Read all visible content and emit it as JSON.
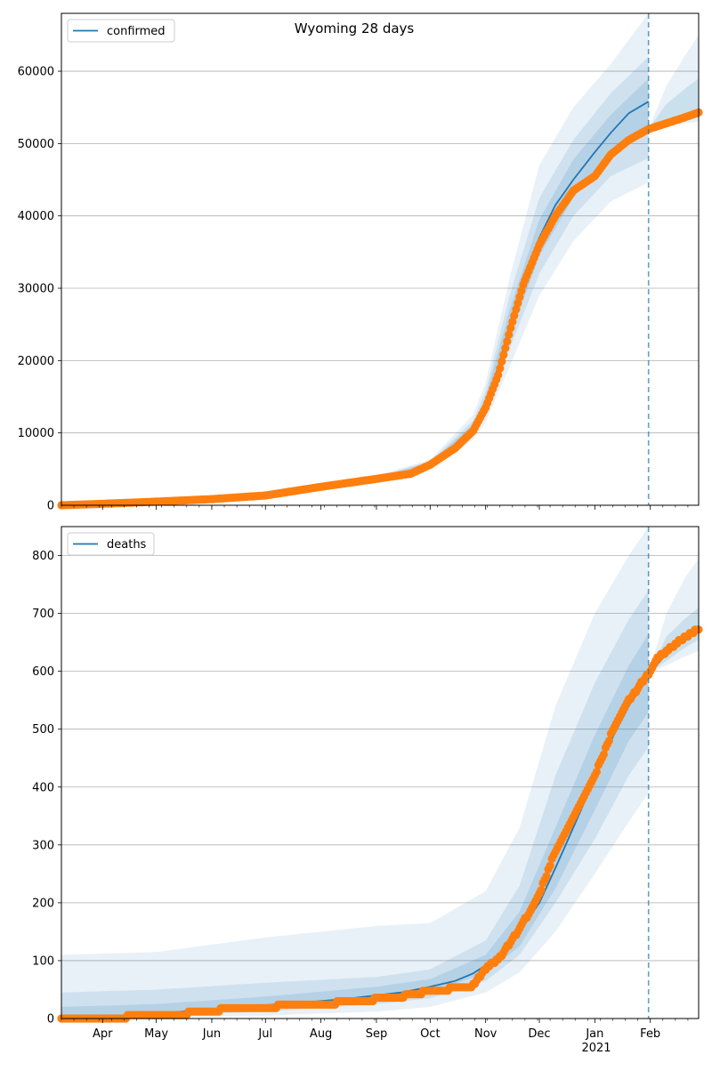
{
  "title": "Wyoming 28 days",
  "colors": {
    "model": "#1f77b4",
    "observed": "#ff7f0e",
    "band": "#1f77b4",
    "grid": "#b0b0b0"
  },
  "x_axis": {
    "start": "2020-03-09",
    "end": "2021-02-28",
    "forecast_date": "2021-01-31",
    "ticks": [
      {
        "date": "2020-04-01",
        "label": "Apr"
      },
      {
        "date": "2020-05-01",
        "label": "May"
      },
      {
        "date": "2020-06-01",
        "label": "Jun"
      },
      {
        "date": "2020-07-01",
        "label": "Jul"
      },
      {
        "date": "2020-08-01",
        "label": "Aug"
      },
      {
        "date": "2020-09-01",
        "label": "Sep"
      },
      {
        "date": "2020-10-01",
        "label": "Oct"
      },
      {
        "date": "2020-11-01",
        "label": "Nov"
      },
      {
        "date": "2020-12-01",
        "label": "Dec"
      },
      {
        "date": "2021-01-01",
        "label": "Jan"
      },
      {
        "date": "2021-02-01",
        "label": "Feb"
      }
    ],
    "year_label": "2021"
  },
  "chart_data": [
    {
      "type": "line",
      "legend": "confirmed",
      "legend_position": "top-left",
      "grid": "horizontal",
      "ylim": [
        0,
        68000
      ],
      "yticks": [
        0,
        10000,
        20000,
        30000,
        40000,
        50000,
        60000
      ],
      "series": [
        {
          "name": "confirmed",
          "kind": "model",
          "points": [
            [
              "2020-03-09",
              0
            ],
            [
              "2020-04-01",
              200
            ],
            [
              "2020-05-01",
              500
            ],
            [
              "2020-06-01",
              850
            ],
            [
              "2020-07-01",
              1400
            ],
            [
              "2020-08-01",
              2600
            ],
            [
              "2020-09-01",
              3700
            ],
            [
              "2020-09-20",
              4400
            ],
            [
              "2020-10-01",
              5700
            ],
            [
              "2020-10-15",
              8000
            ],
            [
              "2020-10-25",
              10500
            ],
            [
              "2020-11-01",
              14000
            ],
            [
              "2020-11-08",
              19000
            ],
            [
              "2020-11-15",
              25500
            ],
            [
              "2020-11-22",
              31500
            ],
            [
              "2020-12-01",
              37000
            ],
            [
              "2020-12-10",
              41500
            ],
            [
              "2020-12-20",
              45000
            ],
            [
              "2021-01-01",
              48800
            ],
            [
              "2021-01-10",
              51500
            ],
            [
              "2021-01-20",
              54200
            ],
            [
              "2021-01-31",
              55800
            ]
          ]
        },
        {
          "name": "observed",
          "kind": "observed",
          "points": [
            [
              "2020-03-09",
              0
            ],
            [
              "2020-04-01",
              200
            ],
            [
              "2020-05-01",
              500
            ],
            [
              "2020-06-01",
              850
            ],
            [
              "2020-07-01",
              1350
            ],
            [
              "2020-08-01",
              2550
            ],
            [
              "2020-09-01",
              3650
            ],
            [
              "2020-09-20",
              4350
            ],
            [
              "2020-10-01",
              5600
            ],
            [
              "2020-10-15",
              7900
            ],
            [
              "2020-10-25",
              10300
            ],
            [
              "2020-11-01",
              13500
            ],
            [
              "2020-11-08",
              18000
            ],
            [
              "2020-11-15",
              24500
            ],
            [
              "2020-11-22",
              30500
            ],
            [
              "2020-12-01",
              36000
            ],
            [
              "2020-12-10",
              40000
            ],
            [
              "2020-12-20",
              43500
            ],
            [
              "2021-01-01",
              45500
            ],
            [
              "2021-01-10",
              48500
            ],
            [
              "2021-01-20",
              50500
            ],
            [
              "2021-01-31",
              52000
            ],
            [
              "2021-02-10",
              52800
            ],
            [
              "2021-02-20",
              53600
            ],
            [
              "2021-02-28",
              54300
            ]
          ]
        }
      ],
      "bands": [
        {
          "level": "outer",
          "points": [
            [
              "2020-03-09",
              0,
              200
            ],
            [
              "2020-05-01",
              400,
              700
            ],
            [
              "2020-07-01",
              1150,
              1650
            ],
            [
              "2020-09-01",
              3300,
              4100
            ],
            [
              "2020-10-01",
              5000,
              6300
            ],
            [
              "2020-10-25",
              9000,
              12500
            ],
            [
              "2020-11-01",
              11500,
              17000
            ],
            [
              "2020-11-15",
              19500,
              32000
            ],
            [
              "2020-12-01",
              29000,
              47000
            ],
            [
              "2020-12-20",
              36500,
              55000
            ],
            [
              "2021-01-10",
              42000,
              61000
            ],
            [
              "2021-01-31",
              44600,
              68000
            ]
          ]
        },
        {
          "level": "middle",
          "points": [
            [
              "2020-03-09",
              0,
              120
            ],
            [
              "2020-05-01",
              450,
              600
            ],
            [
              "2020-07-01",
              1250,
              1550
            ],
            [
              "2020-09-01",
              3450,
              3950
            ],
            [
              "2020-10-01",
              5200,
              6100
            ],
            [
              "2020-10-25",
              9500,
              11700
            ],
            [
              "2020-11-01",
              12500,
              15800
            ],
            [
              "2020-11-15",
              22000,
              29500
            ],
            [
              "2020-12-01",
              32000,
              42500
            ],
            [
              "2020-12-20",
              40000,
              50500
            ],
            [
              "2021-01-10",
              45500,
              57000
            ],
            [
              "2021-01-31",
              48000,
              62000
            ]
          ]
        },
        {
          "level": "inner",
          "points": [
            [
              "2020-03-09",
              0,
              60
            ],
            [
              "2020-05-01",
              470,
              550
            ],
            [
              "2020-07-01",
              1320,
              1480
            ],
            [
              "2020-09-01",
              3550,
              3850
            ],
            [
              "2020-10-01",
              5400,
              5950
            ],
            [
              "2020-10-25",
              10000,
              11200
            ],
            [
              "2020-11-01",
              13000,
              15000
            ],
            [
              "2020-11-15",
              23500,
              27500
            ],
            [
              "2020-12-01",
              34500,
              39500
            ],
            [
              "2020-12-20",
              42500,
              47800
            ],
            [
              "2021-01-10",
              48500,
              54000
            ],
            [
              "2021-01-31",
              51500,
              59000
            ]
          ]
        },
        {
          "level": "after-outer",
          "points": [
            [
              "2021-01-31",
              52000,
              52000
            ],
            [
              "2021-02-10",
              52500,
              58000
            ],
            [
              "2021-02-20",
              52800,
              62000
            ],
            [
              "2021-02-28",
              53000,
              65000
            ]
          ]
        },
        {
          "level": "after-inner",
          "points": [
            [
              "2021-01-31",
              52000,
              52000
            ],
            [
              "2021-02-10",
              52700,
              55500
            ],
            [
              "2021-02-20",
              53200,
              57500
            ],
            [
              "2021-02-28",
              53600,
              59000
            ]
          ]
        }
      ]
    },
    {
      "type": "line",
      "legend": "deaths",
      "legend_position": "top-left",
      "grid": "horizontal",
      "ylim": [
        0,
        850
      ],
      "yticks": [
        0,
        100,
        200,
        300,
        400,
        500,
        600,
        700,
        800
      ],
      "series": [
        {
          "name": "deaths",
          "kind": "model",
          "points": [
            [
              "2020-03-09",
              0
            ],
            [
              "2020-04-15",
              5
            ],
            [
              "2020-05-15",
              12
            ],
            [
              "2020-06-15",
              20
            ],
            [
              "2020-07-15",
              26
            ],
            [
              "2020-08-15",
              34
            ],
            [
              "2020-09-15",
              45
            ],
            [
              "2020-10-01",
              55
            ],
            [
              "2020-10-15",
              65
            ],
            [
              "2020-10-25",
              78
            ],
            [
              "2020-11-01",
              92
            ],
            [
              "2020-11-10",
              115
            ],
            [
              "2020-11-20",
              150
            ],
            [
              "2020-12-01",
              200
            ],
            [
              "2020-12-10",
              260
            ],
            [
              "2020-12-20",
              330
            ],
            [
              "2021-01-01",
              415
            ],
            [
              "2021-01-10",
              480
            ],
            [
              "2021-01-20",
              540
            ],
            [
              "2021-01-31",
              595
            ],
            [
              "2021-02-10",
              630
            ],
            [
              "2021-02-20",
              660
            ],
            [
              "2021-02-28",
              678
            ]
          ]
        },
        {
          "name": "observed",
          "kind": "observed",
          "points": [
            [
              "2020-03-09",
              0
            ],
            [
              "2020-04-15",
              3
            ],
            [
              "2020-05-15",
              8
            ],
            [
              "2020-06-15",
              18
            ],
            [
              "2020-07-15",
              22
            ],
            [
              "2020-08-15",
              28
            ],
            [
              "2020-09-15",
              38
            ],
            [
              "2020-10-01",
              48
            ],
            [
              "2020-10-15",
              52
            ],
            [
              "2020-10-25",
              57
            ],
            [
              "2020-11-01",
              85
            ],
            [
              "2020-11-10",
              110
            ],
            [
              "2020-11-20",
              155
            ],
            [
              "2020-12-01",
              215
            ],
            [
              "2020-12-10",
              290
            ],
            [
              "2020-12-20",
              350
            ],
            [
              "2021-01-01",
              420
            ],
            [
              "2021-01-10",
              490
            ],
            [
              "2021-01-20",
              550
            ],
            [
              "2021-01-31",
              596
            ],
            [
              "2021-02-05",
              622
            ],
            [
              "2021-02-15",
              647
            ],
            [
              "2021-02-22",
              662
            ],
            [
              "2021-02-28",
              673
            ]
          ]
        }
      ],
      "bands": [
        {
          "level": "outer",
          "points": [
            [
              "2020-03-09",
              0,
              110
            ],
            [
              "2020-05-01",
              2,
              115
            ],
            [
              "2020-07-01",
              5,
              140
            ],
            [
              "2020-09-01",
              12,
              160
            ],
            [
              "2020-10-01",
              20,
              165
            ],
            [
              "2020-11-01",
              45,
              220
            ],
            [
              "2020-11-20",
              80,
              330
            ],
            [
              "2020-12-10",
              150,
              540
            ],
            [
              "2021-01-01",
              250,
              700
            ],
            [
              "2021-01-20",
              340,
              800
            ],
            [
              "2021-01-31",
              390,
              850
            ]
          ]
        },
        {
          "level": "middle",
          "points": [
            [
              "2020-03-09",
              0,
              45
            ],
            [
              "2020-05-01",
              5,
              50
            ],
            [
              "2020-07-01",
              12,
              62
            ],
            [
              "2020-09-01",
              25,
              72
            ],
            [
              "2020-10-01",
              35,
              85
            ],
            [
              "2020-11-01",
              65,
              135
            ],
            [
              "2020-11-20",
              110,
              230
            ],
            [
              "2020-12-10",
              200,
              420
            ],
            [
              "2021-01-01",
              310,
              580
            ],
            [
              "2021-01-20",
              420,
              690
            ],
            [
              "2021-01-31",
              470,
              740
            ]
          ]
        },
        {
          "level": "inner",
          "points": [
            [
              "2020-03-09",
              0,
              20
            ],
            [
              "2020-05-01",
              8,
              25
            ],
            [
              "2020-07-01",
              18,
              38
            ],
            [
              "2020-09-01",
              34,
              55
            ],
            [
              "2020-10-01",
              46,
              68
            ],
            [
              "2020-11-01",
              78,
              110
            ],
            [
              "2020-11-20",
              125,
              185
            ],
            [
              "2020-12-10",
              225,
              330
            ],
            [
              "2021-01-01",
              360,
              490
            ],
            [
              "2021-01-20",
              480,
              610
            ],
            [
              "2021-01-31",
              530,
              665
            ]
          ]
        },
        {
          "level": "after-outer",
          "points": [
            [
              "2021-01-31",
              596,
              596
            ],
            [
              "2021-02-10",
              610,
              700
            ],
            [
              "2021-02-20",
              625,
              760
            ],
            [
              "2021-02-28",
              635,
              795
            ]
          ]
        },
        {
          "level": "after-inner",
          "points": [
            [
              "2021-01-31",
              596,
              596
            ],
            [
              "2021-02-10",
              618,
              660
            ],
            [
              "2021-02-20",
              640,
              690
            ],
            [
              "2021-02-28",
              655,
              710
            ]
          ]
        }
      ]
    }
  ]
}
